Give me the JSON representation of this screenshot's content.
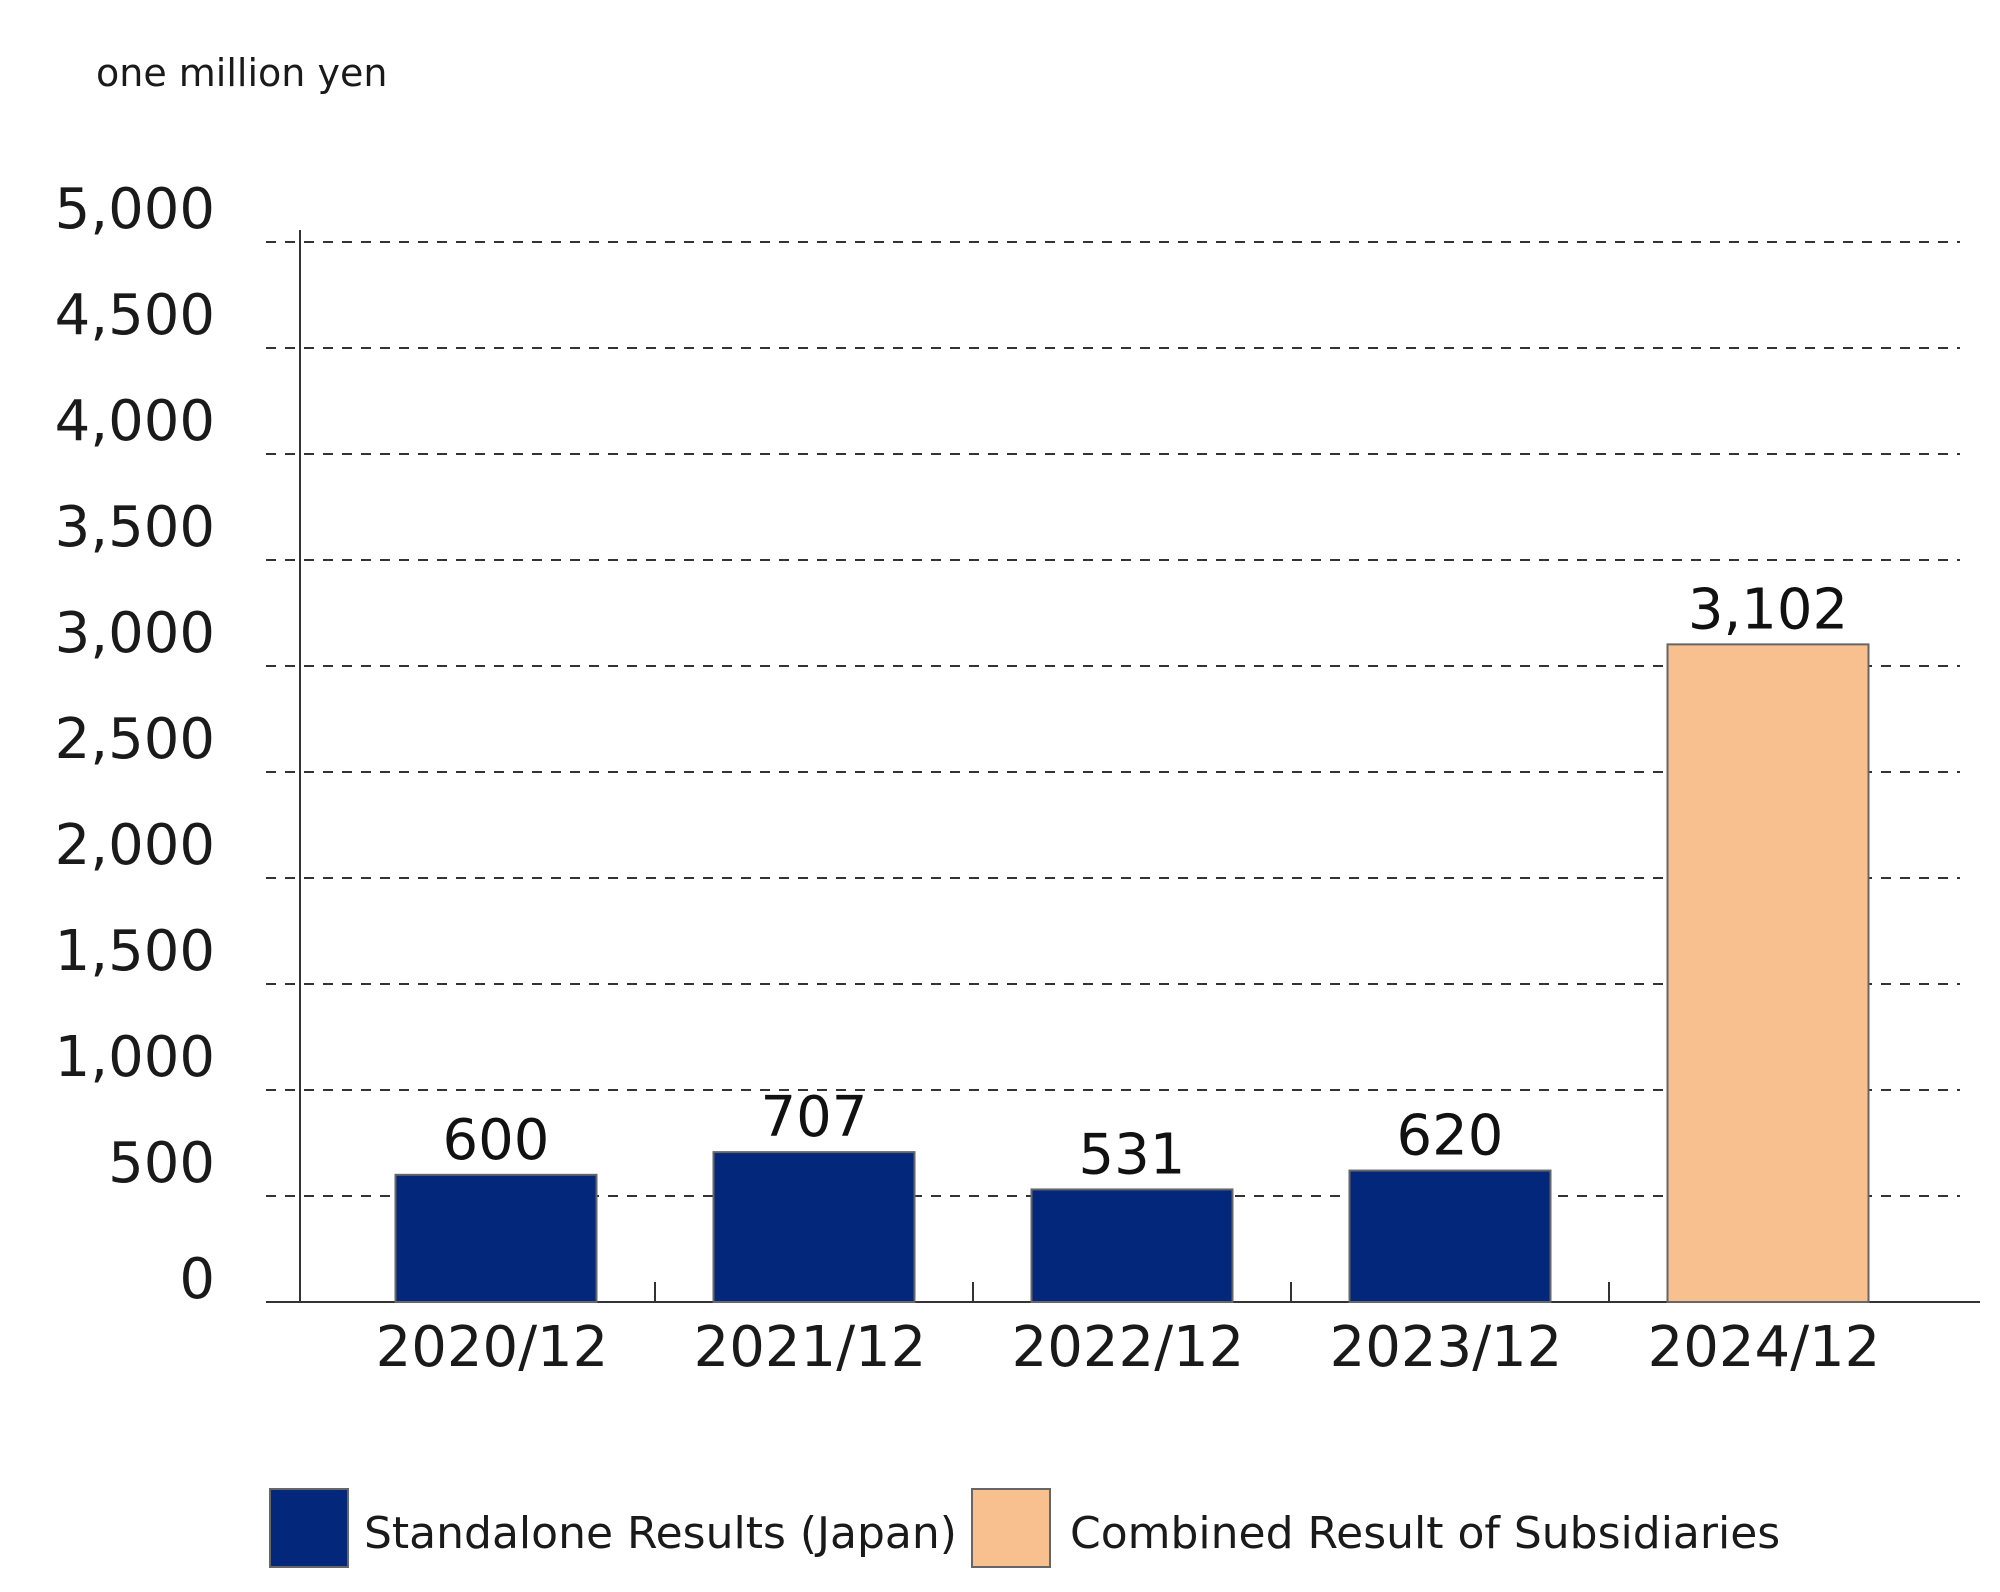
{
  "chart_data": {
    "type": "bar",
    "unit_label": "one million yen",
    "categories": [
      "2020/12",
      "2021/12",
      "2022/12",
      "2023/12",
      "2024/12"
    ],
    "values": [
      600,
      707,
      531,
      620,
      3102
    ],
    "value_labels": [
      "600",
      "707",
      "531",
      "620",
      "3,102"
    ],
    "bar_series": [
      "standalone",
      "standalone",
      "standalone",
      "standalone",
      "subsidiaries"
    ],
    "ylim": [
      0,
      5000
    ],
    "yticks": [
      0,
      500,
      1000,
      1500,
      2000,
      2500,
      3000,
      3500,
      4000,
      4500,
      5000
    ],
    "ytick_labels": [
      "0",
      "500",
      "1,000",
      "1,500",
      "2,000",
      "2,500",
      "3,000",
      "3,500",
      "4,000",
      "4,500",
      "5,000"
    ],
    "grid": "dashed-horizontal",
    "legend": {
      "placement": "bottom",
      "entries": [
        {
          "key": "standalone",
          "label": "Standalone Results (Japan)",
          "color": "#03277A"
        },
        {
          "key": "subsidiaries",
          "label": "Combined Result of Subsidiaries",
          "color": "#F8BF8F"
        }
      ]
    },
    "colors": {
      "axis": "#333333",
      "grid": "#333333",
      "bar_outline": "#666666",
      "text": "#1a1a1a"
    }
  }
}
